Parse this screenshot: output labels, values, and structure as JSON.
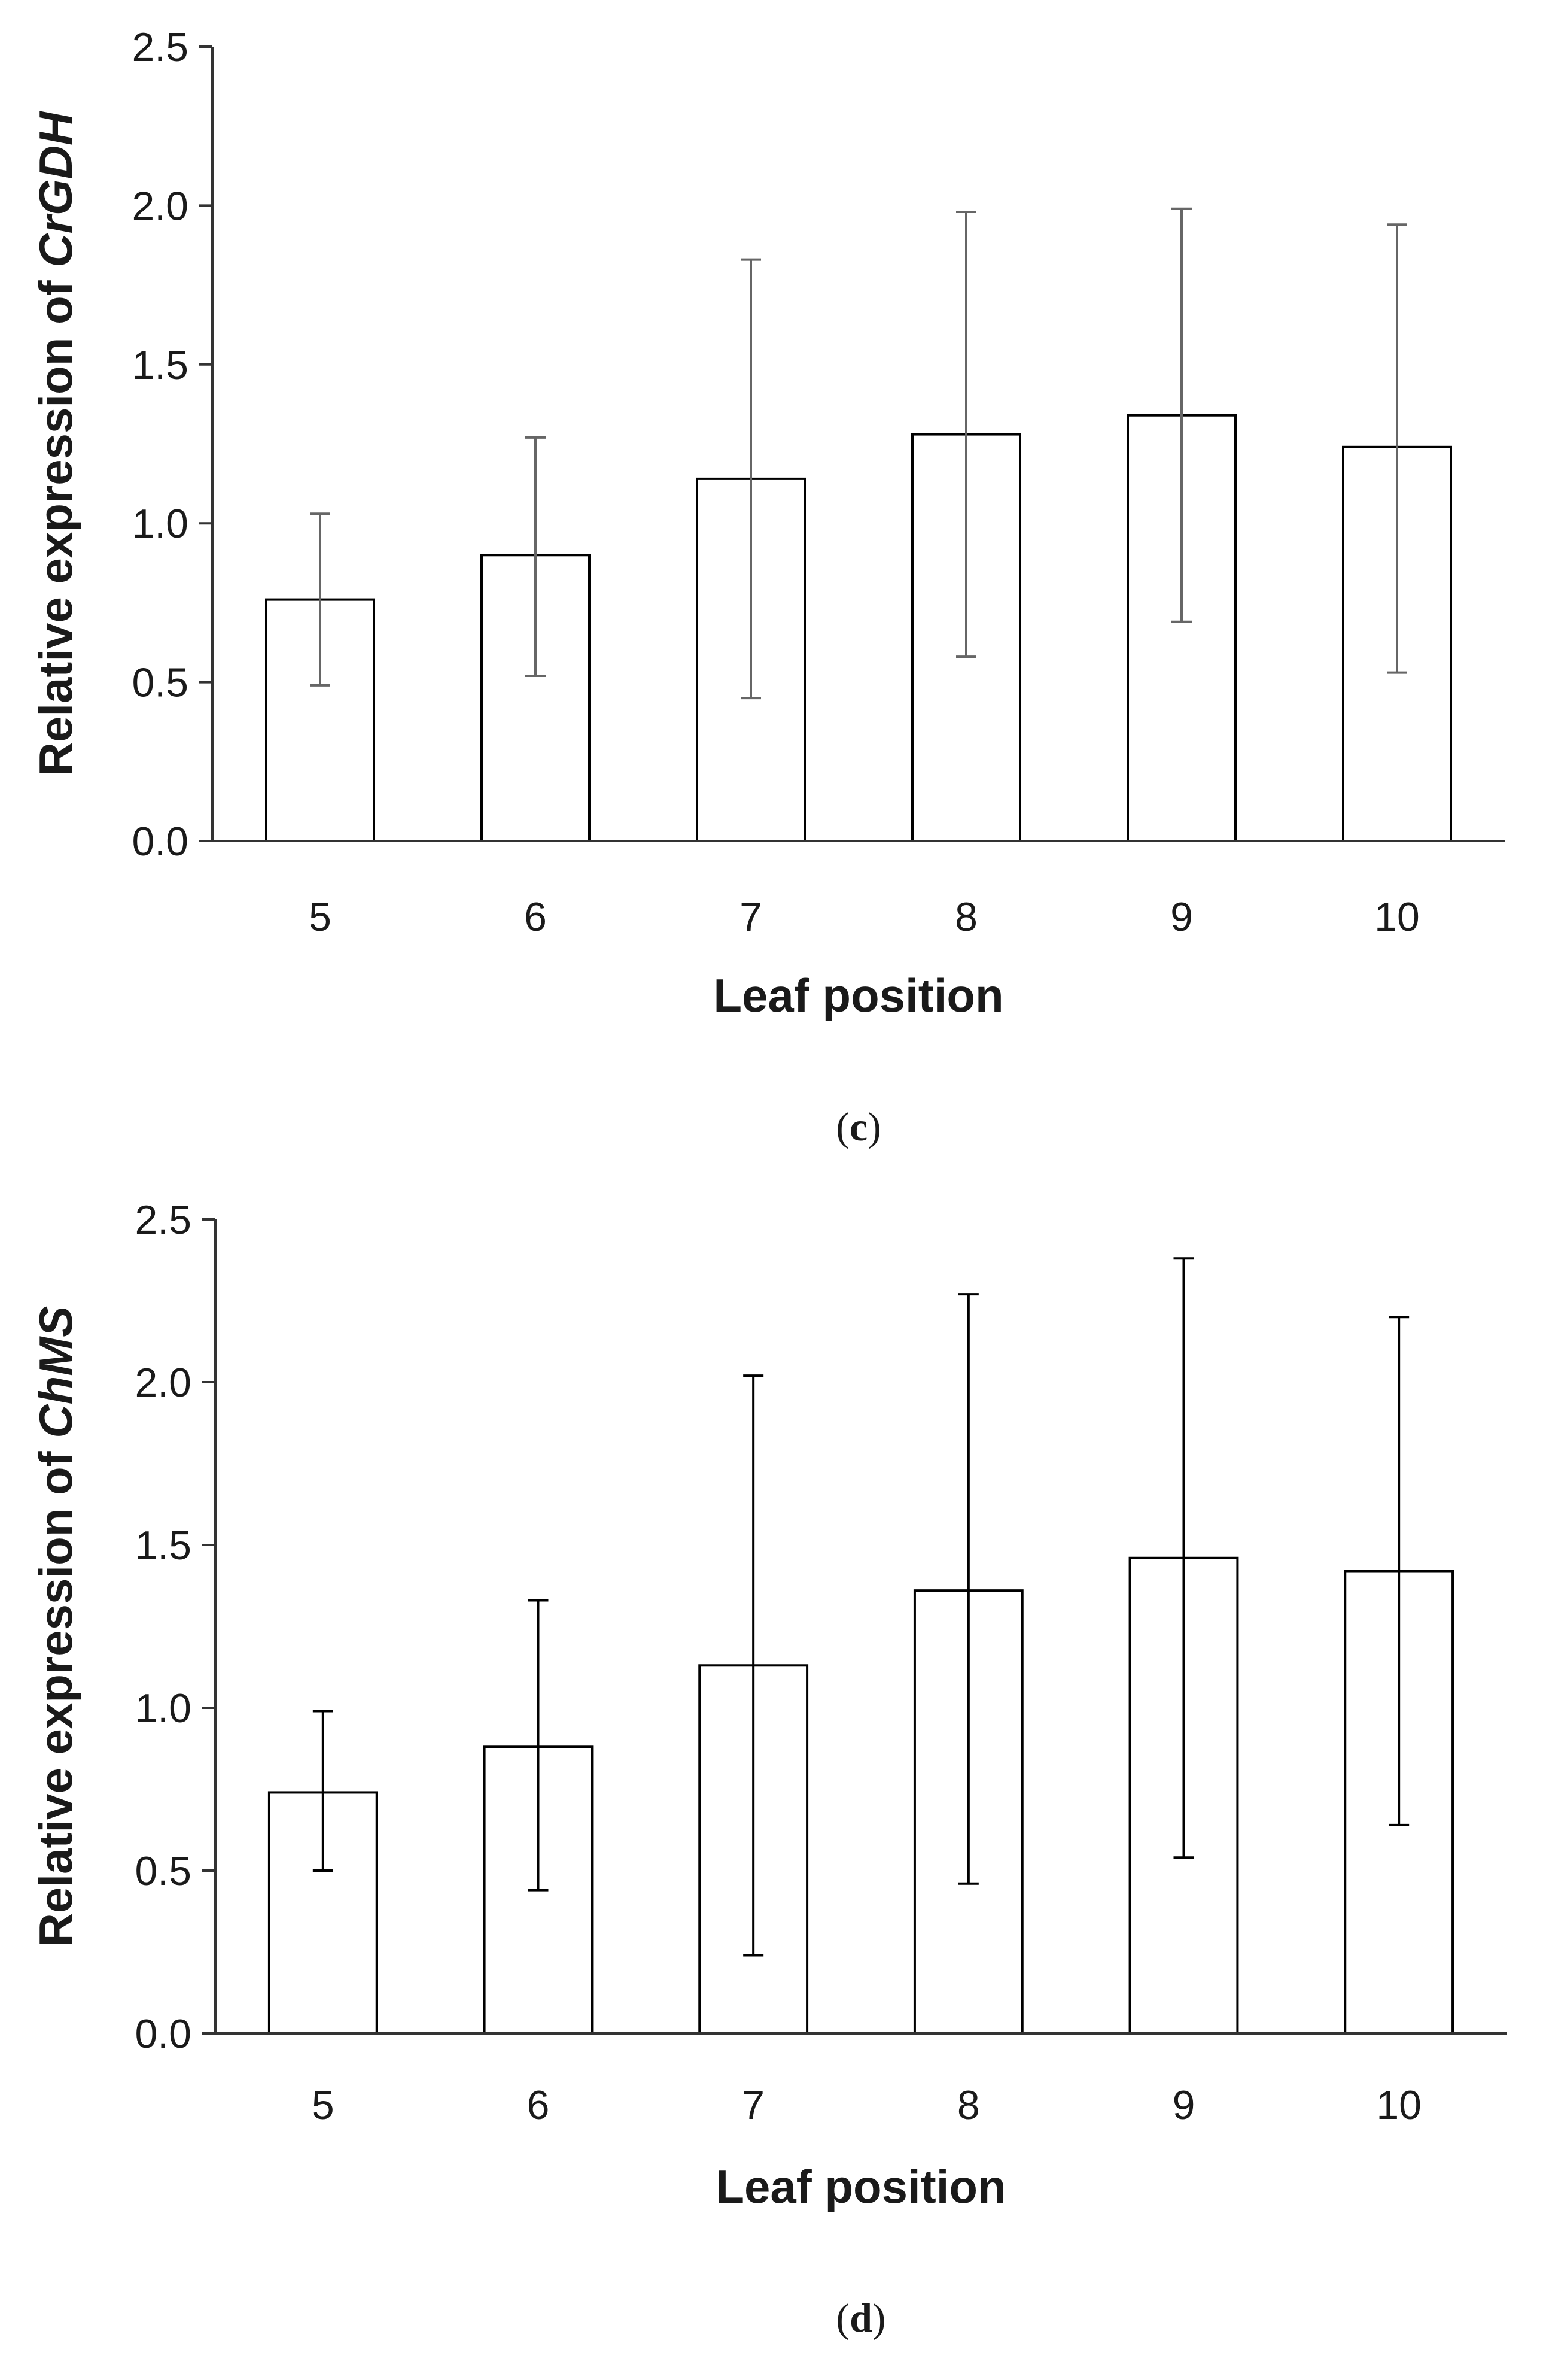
{
  "chart_data": [
    {
      "type": "bar",
      "panel_label": "c",
      "categories": [
        "5",
        "6",
        "7",
        "8",
        "9",
        "10"
      ],
      "values": [
        0.76,
        0.9,
        1.14,
        1.28,
        1.34,
        1.24
      ],
      "error_upper": [
        1.03,
        1.27,
        1.83,
        1.98,
        1.99,
        1.94
      ],
      "error_lower": [
        0.49,
        0.52,
        0.45,
        0.58,
        0.69,
        0.53
      ],
      "xlabel": "Leaf position",
      "ylabel_prefix": "Relative expression of ",
      "ylabel_gene": "CrGDH",
      "ylim": [
        0,
        2.5
      ],
      "yticks": [
        "0.0",
        "0.5",
        "1.0",
        "1.5",
        "2.0",
        "2.5"
      ],
      "error_color": "#666666",
      "grid": false
    },
    {
      "type": "bar",
      "panel_label": "d",
      "categories": [
        "5",
        "6",
        "7",
        "8",
        "9",
        "10"
      ],
      "values": [
        0.74,
        0.88,
        1.13,
        1.36,
        1.46,
        1.42
      ],
      "error_upper": [
        0.99,
        1.33,
        2.02,
        2.27,
        2.38,
        2.2
      ],
      "error_lower": [
        0.5,
        0.44,
        0.24,
        0.46,
        0.54,
        0.64
      ],
      "xlabel": "Leaf position",
      "ylabel_prefix": "Relative expression of ",
      "ylabel_gene": "ChMS",
      "ylim": [
        0,
        2.5
      ],
      "yticks": [
        "0.0",
        "0.5",
        "1.0",
        "1.5",
        "2.0",
        "2.5"
      ],
      "error_color": "#000000",
      "grid": false
    }
  ]
}
